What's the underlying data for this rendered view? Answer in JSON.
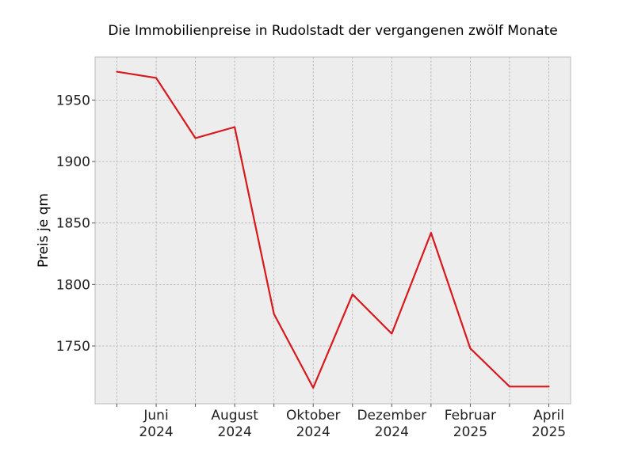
{
  "chart_data": {
    "type": "line",
    "title": "Die Immobilienpreise in Rudolstadt der vergangenen zwölf Monate",
    "xlabel": "",
    "ylabel": "Preis je qm",
    "x": [
      "2024-05",
      "2024-06",
      "2024-07",
      "2024-08",
      "2024-09",
      "2024-10",
      "2024-11",
      "2024-12",
      "2025-01",
      "2025-02",
      "2025-03",
      "2025-04"
    ],
    "x_tick_labels": [
      {
        "x": "2024-06",
        "line1": "Juni",
        "line2": "2024"
      },
      {
        "x": "2024-08",
        "line1": "August",
        "line2": "2024"
      },
      {
        "x": "2024-10",
        "line1": "Oktober",
        "line2": "2024"
      },
      {
        "x": "2024-12",
        "line1": "Dezember",
        "line2": "2024"
      },
      {
        "x": "2025-02",
        "line1": "Februar",
        "line2": "2025"
      },
      {
        "x": "2025-04",
        "line1": "April",
        "line2": "2025"
      }
    ],
    "series": [
      {
        "values": [
          1973,
          1968,
          1919,
          1928,
          1776,
          1716,
          1792,
          1760,
          1842,
          1748,
          1717,
          1717
        ],
        "color": "#d7191c"
      }
    ],
    "ylim": [
      1703,
      1985
    ],
    "yticks": [
      1750,
      1800,
      1850,
      1900,
      1950
    ],
    "grid": true,
    "background": "#ededed"
  }
}
